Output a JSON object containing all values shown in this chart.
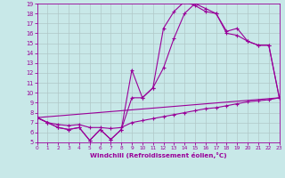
{
  "xlabel": "Windchill (Refroidissement éolien,°C)",
  "bg_color": "#c8e8e8",
  "line_color": "#990099",
  "grid_color": "#b0c8c8",
  "xmin": 0,
  "xmax": 23,
  "ymin": 5,
  "ymax": 19,
  "line1_x": [
    0,
    1,
    2,
    3,
    4,
    5,
    6,
    7,
    8,
    9,
    10,
    11,
    12,
    13,
    14,
    15,
    16,
    17,
    18,
    19,
    20,
    21,
    22,
    23
  ],
  "line1_y": [
    7.5,
    7.0,
    6.5,
    6.3,
    6.5,
    5.2,
    6.3,
    5.3,
    6.3,
    12.3,
    9.5,
    10.5,
    16.5,
    18.2,
    19.2,
    18.8,
    18.2,
    18.0,
    16.2,
    16.5,
    15.2,
    14.8,
    14.8,
    9.5
  ],
  "line2_x": [
    0,
    1,
    2,
    3,
    4,
    5,
    6,
    7,
    8,
    9,
    10,
    11,
    12,
    13,
    14,
    15,
    16,
    17,
    18,
    19,
    20,
    21,
    22,
    23
  ],
  "line2_y": [
    7.5,
    7.0,
    6.5,
    6.3,
    6.5,
    5.2,
    6.3,
    5.3,
    6.3,
    9.5,
    9.5,
    10.5,
    12.5,
    15.5,
    18.0,
    19.0,
    18.5,
    18.0,
    16.0,
    15.8,
    15.2,
    14.8,
    14.8,
    9.5
  ],
  "line3_x": [
    0,
    23
  ],
  "line3_y": [
    7.5,
    9.5
  ],
  "line4_x": [
    0,
    1,
    2,
    3,
    4,
    5,
    6,
    7,
    8,
    9,
    10,
    11,
    12,
    13,
    14,
    15,
    16,
    17,
    18,
    19,
    20,
    21,
    22,
    23
  ],
  "line4_y": [
    7.5,
    7.0,
    6.8,
    6.7,
    6.8,
    6.5,
    6.5,
    6.4,
    6.5,
    7.0,
    7.2,
    7.4,
    7.6,
    7.8,
    8.0,
    8.2,
    8.4,
    8.5,
    8.7,
    8.9,
    9.1,
    9.2,
    9.3,
    9.5
  ],
  "yticks": [
    5,
    6,
    7,
    8,
    9,
    10,
    11,
    12,
    13,
    14,
    15,
    16,
    17,
    18,
    19
  ],
  "xticks": [
    0,
    1,
    2,
    3,
    4,
    5,
    6,
    7,
    8,
    9,
    10,
    11,
    12,
    13,
    14,
    15,
    16,
    17,
    18,
    19,
    20,
    21,
    22,
    23
  ]
}
